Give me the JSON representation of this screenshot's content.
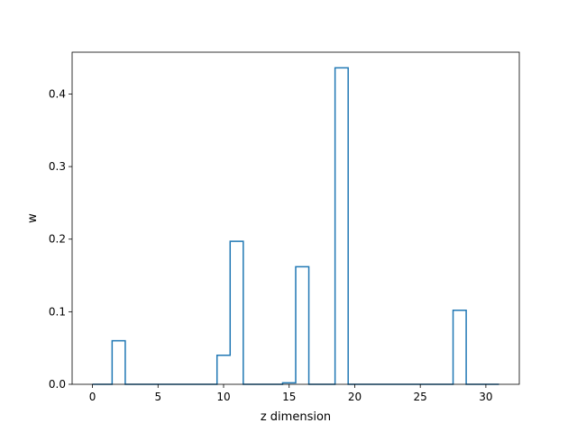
{
  "chart_data": {
    "type": "line",
    "drawstyle": "steps-mid",
    "title": "",
    "xlabel": "z dimension",
    "ylabel": "w",
    "xlim": [
      -1.55,
      32.55
    ],
    "ylim": [
      0,
      0.4576
    ],
    "xticks": [
      0,
      5,
      10,
      15,
      20,
      25,
      30
    ],
    "xtick_labels": [
      "0",
      "5",
      "10",
      "15",
      "20",
      "25",
      "30"
    ],
    "yticks": [
      0.0,
      0.1,
      0.2,
      0.3,
      0.4
    ],
    "ytick_labels": [
      "0.0",
      "0.1",
      "0.2",
      "0.3",
      "0.4"
    ],
    "grid": false,
    "line_color": "#1f77b4",
    "series": [
      {
        "x": [
          0,
          1,
          2,
          3,
          4,
          5,
          6,
          7,
          8,
          9,
          10,
          11,
          12,
          13,
          14,
          15,
          16,
          17,
          18,
          19,
          20,
          21,
          22,
          23,
          24,
          25,
          26,
          27,
          28,
          29,
          30,
          31
        ],
        "values": [
          0,
          0,
          0.06,
          0,
          0,
          0,
          0,
          0,
          0,
          0,
          0.04,
          0.197,
          0,
          0,
          0,
          0.002,
          0.162,
          0,
          0,
          0.436,
          0,
          0,
          0,
          0,
          0,
          0,
          0,
          0,
          0.102,
          0,
          0,
          0
        ]
      }
    ]
  }
}
